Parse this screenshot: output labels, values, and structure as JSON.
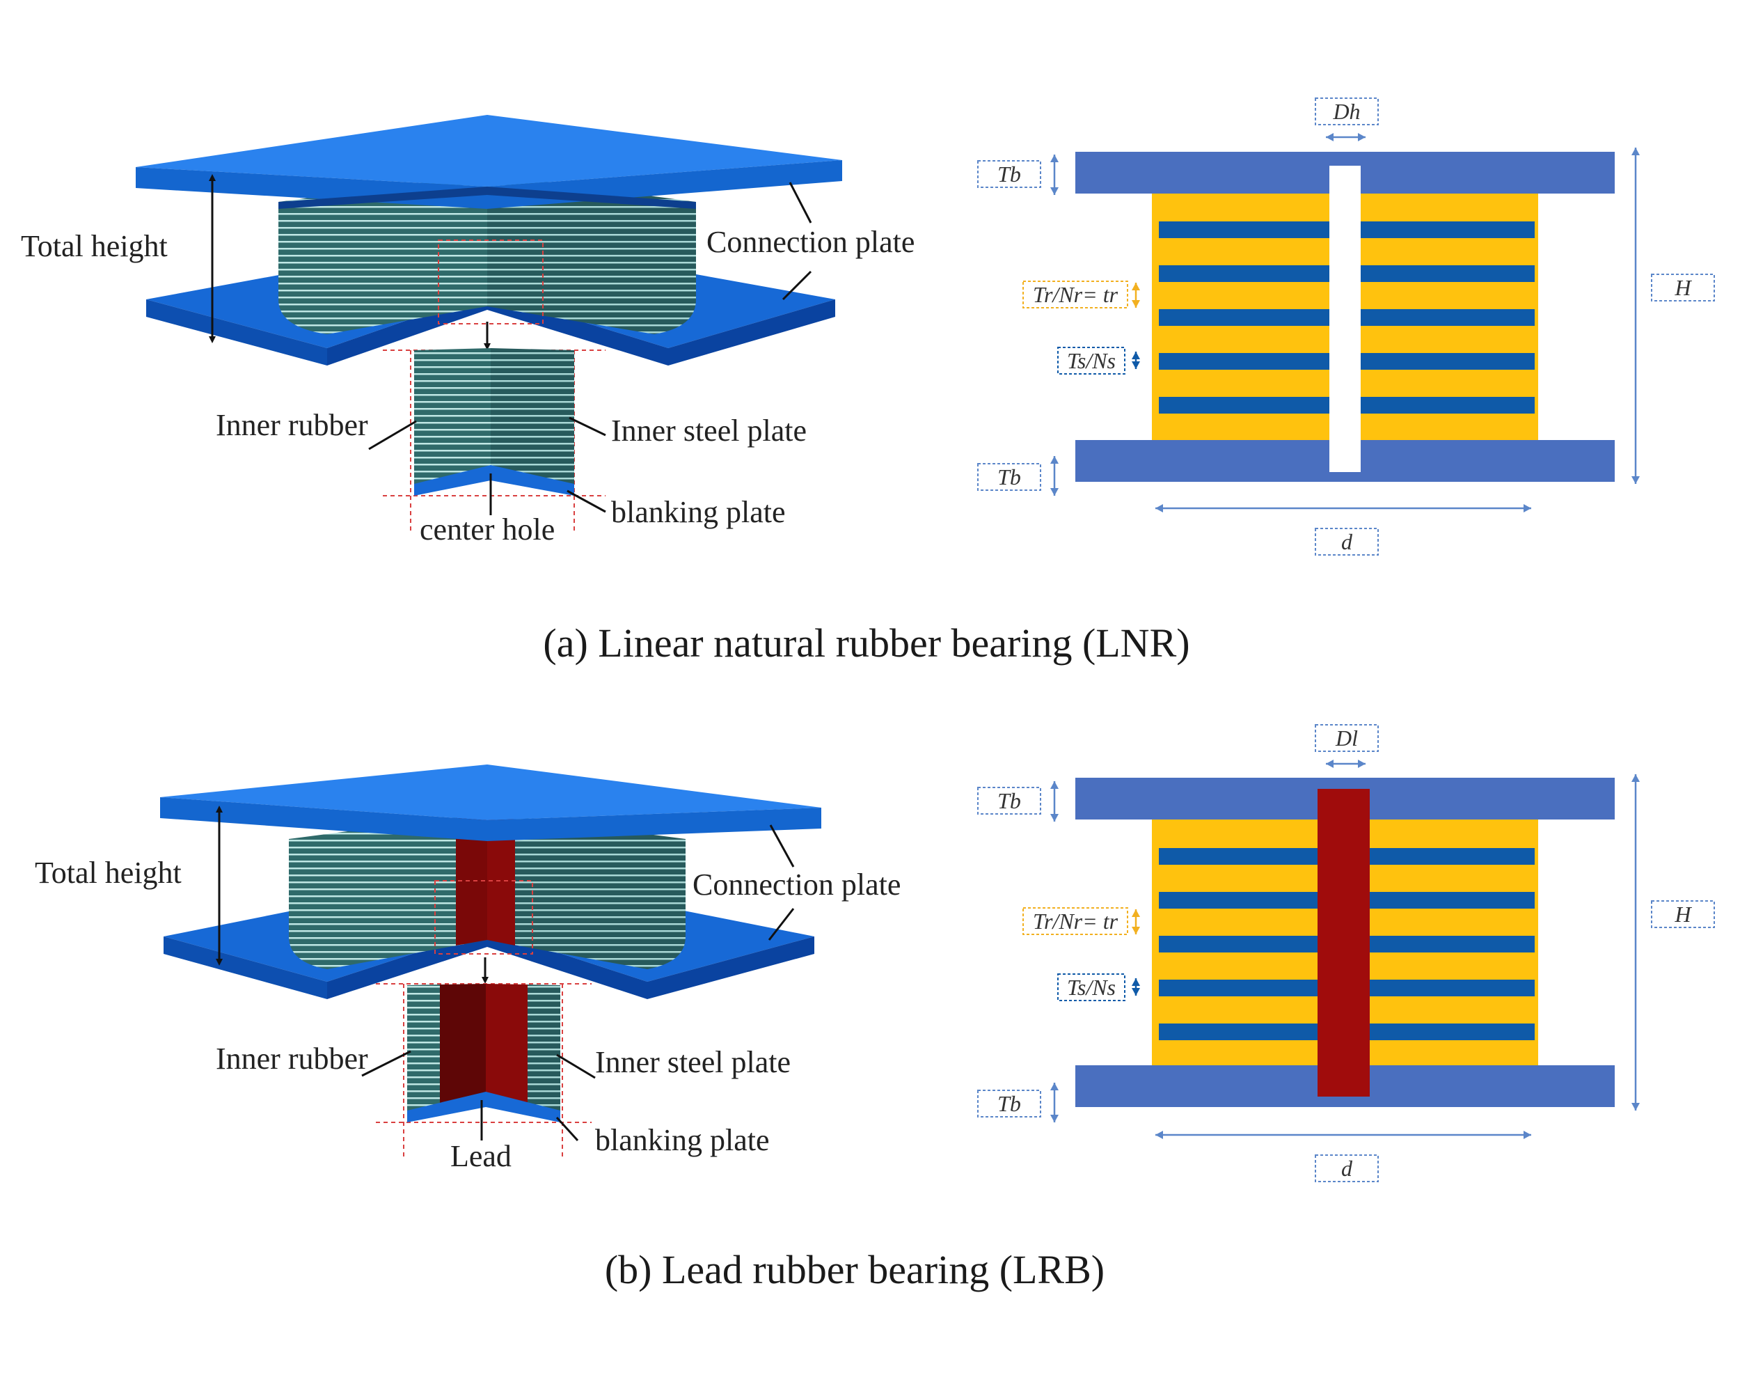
{
  "panels": [
    {
      "id": "lnr",
      "caption": "(a) Linear natural rubber bearing (LNR)",
      "core_type": "hole",
      "labels": {
        "total_height": "Total height",
        "connection_plate": "Connection plate",
        "inner_rubber": "Inner rubber",
        "inner_steel_plate": "Inner steel plate",
        "blanking_plate": "blanking plate",
        "core": "center hole"
      },
      "dims": {
        "core_diameter": "Dh",
        "top_plate": "Tb",
        "bottom_plate": "Tb",
        "rubber_layer": "Tr/Nr= tr",
        "steel_layer": "Ts/Ns",
        "height": "H",
        "diameter": "d"
      }
    },
    {
      "id": "lrb",
      "caption": "(b) Lead rubber bearing (LRB)",
      "core_type": "lead",
      "labels": {
        "total_height": "Total height",
        "connection_plate": "Connection plate",
        "inner_rubber": "Inner rubber",
        "inner_steel_plate": "Inner steel plate",
        "blanking_plate": "blanking plate",
        "core": "Lead"
      },
      "dims": {
        "core_diameter": "Dl",
        "top_plate": "Tb",
        "bottom_plate": "Tb",
        "rubber_layer": "Tr/Nr= tr",
        "steel_layer": "Ts/Ns",
        "height": "H",
        "diameter": "d"
      }
    }
  ],
  "colors": {
    "plate_3d": "#1769d6",
    "plate_3d_dark": "#0d4fb0",
    "plate_3d_light": "#2a82ee",
    "rubber_3d": "#2f6a6a",
    "steel_lines": "#bfe7e4",
    "lead": "#8a0a0a",
    "lead_dark": "#5e0606",
    "plate_2d": "#4a6fbf",
    "rubber_2d": "#ffc20e",
    "steel_2d": "#0f5aa8",
    "dim_line": "#5b86c9",
    "rubber_tag": "#f2b020",
    "guide": "#d94040"
  }
}
